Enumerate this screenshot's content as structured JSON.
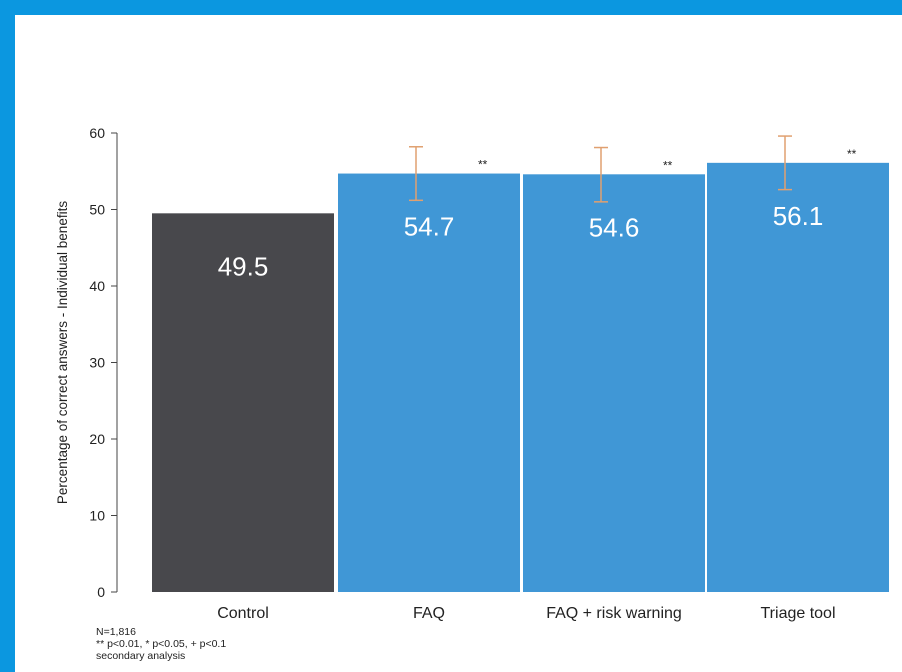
{
  "chart_data": {
    "type": "bar",
    "categories": [
      "Control",
      "FAQ",
      "FAQ + risk warning",
      "Triage tool"
    ],
    "values": [
      49.5,
      54.7,
      54.6,
      56.1
    ],
    "value_labels": [
      "49.5",
      "54.7",
      "54.6",
      "56.1"
    ],
    "error_bars": [
      null,
      [
        51.2,
        58.2
      ],
      [
        51.0,
        58.1
      ],
      [
        52.6,
        59.6
      ]
    ],
    "significance": [
      "",
      "**",
      "**",
      "**"
    ],
    "bar_colors": [
      "#48484c",
      "#4097d6",
      "#4097d6",
      "#4097d6"
    ],
    "error_bar_color": "#e0a070",
    "ylabel": "Percentage of correct answers - Individual benefits",
    "ylim": [
      0,
      60
    ],
    "yticks": [
      0,
      10,
      20,
      30,
      40,
      50,
      60
    ],
    "grid": false,
    "notes": [
      "N=1,816",
      "** p<0.01, * p<0.05, + p<0.1",
      "secondary analysis"
    ]
  }
}
